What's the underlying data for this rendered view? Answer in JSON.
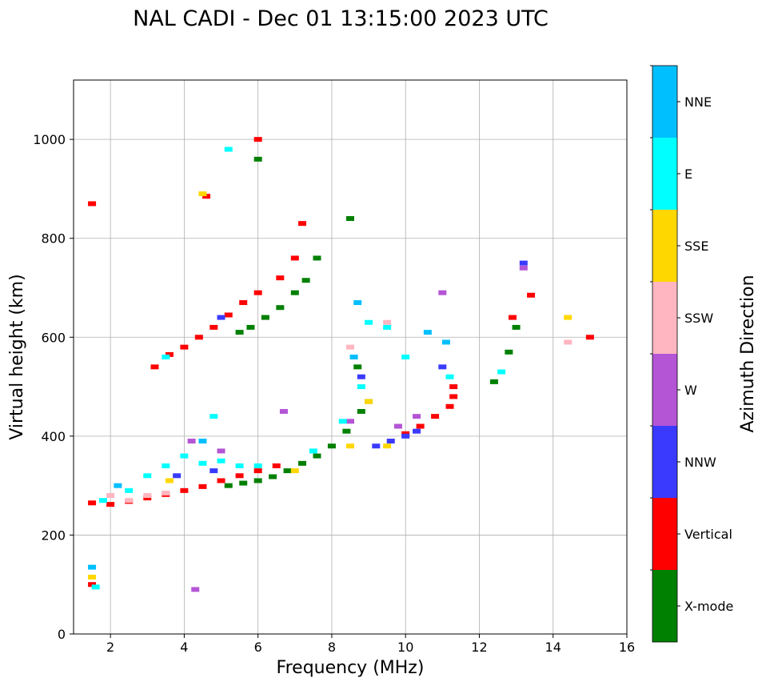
{
  "chart_data": {
    "type": "scatter",
    "title": "NAL CADI - Dec 01 13:15:00 2023 UTC",
    "xlabel": "Frequency (MHz)",
    "ylabel": "Virtual height (km)",
    "xlim": [
      1,
      16
    ],
    "ylim": [
      0,
      1120
    ],
    "xticks": [
      2,
      4,
      6,
      8,
      10,
      12,
      14,
      16
    ],
    "yticks": [
      0,
      200,
      400,
      600,
      800,
      1000
    ],
    "grid": true,
    "colorbar": {
      "label": "Azimuth Direction",
      "categories": [
        {
          "name": "X-mode",
          "color": "#008000"
        },
        {
          "name": "Vertical",
          "color": "#ff0000"
        },
        {
          "name": "NNW",
          "color": "#3a3aff"
        },
        {
          "name": "W",
          "color": "#b455d6"
        },
        {
          "name": "SSW",
          "color": "#ffb6c1"
        },
        {
          "name": "SSE",
          "color": "#ffd700"
        },
        {
          "name": "E",
          "color": "#00ffff"
        },
        {
          "name": "NNE",
          "color": "#00bfff"
        }
      ]
    },
    "series": [
      {
        "name": "X-mode",
        "points": [
          [
            5.2,
            300
          ],
          [
            5.6,
            305
          ],
          [
            6.0,
            310
          ],
          [
            6.4,
            318
          ],
          [
            6.8,
            330
          ],
          [
            7.2,
            345
          ],
          [
            7.6,
            360
          ],
          [
            8.0,
            380
          ],
          [
            8.4,
            410
          ],
          [
            8.8,
            450
          ],
          [
            5.5,
            610
          ],
          [
            5.8,
            620
          ],
          [
            6.2,
            640
          ],
          [
            6.6,
            660
          ],
          [
            7.0,
            690
          ],
          [
            7.3,
            715
          ],
          [
            7.6,
            760
          ],
          [
            8.5,
            840
          ],
          [
            12.4,
            510
          ],
          [
            12.8,
            570
          ],
          [
            13.0,
            620
          ],
          [
            6.0,
            960
          ],
          [
            9.0,
            470
          ],
          [
            8.7,
            540
          ]
        ]
      },
      {
        "name": "Vertical",
        "points": [
          [
            1.5,
            265
          ],
          [
            2.0,
            262
          ],
          [
            2.5,
            268
          ],
          [
            3.0,
            275
          ],
          [
            3.5,
            282
          ],
          [
            4.0,
            290
          ],
          [
            4.5,
            298
          ],
          [
            5.0,
            310
          ],
          [
            5.5,
            320
          ],
          [
            6.0,
            330
          ],
          [
            6.5,
            340
          ],
          [
            10.0,
            405
          ],
          [
            10.4,
            420
          ],
          [
            10.8,
            440
          ],
          [
            11.2,
            460
          ],
          [
            11.3,
            480
          ],
          [
            11.3,
            500
          ],
          [
            3.2,
            540
          ],
          [
            3.6,
            565
          ],
          [
            4.0,
            580
          ],
          [
            4.4,
            600
          ],
          [
            4.8,
            620
          ],
          [
            5.2,
            645
          ],
          [
            5.6,
            670
          ],
          [
            6.0,
            690
          ],
          [
            6.6,
            720
          ],
          [
            7.0,
            760
          ],
          [
            7.2,
            830
          ],
          [
            4.6,
            885
          ],
          [
            6.0,
            1000
          ],
          [
            1.5,
            870
          ],
          [
            13.4,
            685
          ],
          [
            15.0,
            600
          ],
          [
            12.9,
            640
          ],
          [
            1.5,
            100
          ]
        ]
      },
      {
        "name": "NNW",
        "points": [
          [
            9.2,
            380
          ],
          [
            9.6,
            390
          ],
          [
            10.0,
            400
          ],
          [
            10.3,
            410
          ],
          [
            13.2,
            750
          ],
          [
            5.0,
            640
          ],
          [
            4.8,
            330
          ],
          [
            8.8,
            520
          ],
          [
            11.0,
            540
          ],
          [
            3.8,
            320
          ]
        ]
      },
      {
        "name": "W",
        "points": [
          [
            6.7,
            450
          ],
          [
            9.8,
            420
          ],
          [
            10.3,
            440
          ],
          [
            4.2,
            390
          ],
          [
            11.0,
            690
          ],
          [
            8.5,
            430
          ],
          [
            13.2,
            740
          ],
          [
            4.3,
            90
          ],
          [
            5.0,
            370
          ]
        ]
      },
      {
        "name": "SSW",
        "points": [
          [
            2.5,
            270
          ],
          [
            3.0,
            280
          ],
          [
            3.5,
            285
          ],
          [
            8.5,
            580
          ],
          [
            14.4,
            590
          ],
          [
            9.5,
            630
          ],
          [
            2.0,
            280
          ]
        ]
      },
      {
        "name": "SSE",
        "points": [
          [
            8.5,
            380
          ],
          [
            9.0,
            470
          ],
          [
            9.5,
            380
          ],
          [
            3.6,
            310
          ],
          [
            7.0,
            330
          ],
          [
            14.4,
            640
          ],
          [
            4.5,
            890
          ],
          [
            1.5,
            115
          ]
        ]
      },
      {
        "name": "E",
        "points": [
          [
            1.8,
            270
          ],
          [
            2.5,
            290
          ],
          [
            3.0,
            320
          ],
          [
            3.5,
            340
          ],
          [
            4.0,
            360
          ],
          [
            4.5,
            345
          ],
          [
            5.0,
            350
          ],
          [
            5.5,
            340
          ],
          [
            6.0,
            340
          ],
          [
            7.5,
            370
          ],
          [
            8.3,
            430
          ],
          [
            8.8,
            500
          ],
          [
            9.0,
            630
          ],
          [
            9.5,
            620
          ],
          [
            10.0,
            560
          ],
          [
            11.2,
            520
          ],
          [
            12.6,
            530
          ],
          [
            3.5,
            560
          ],
          [
            1.6,
            95
          ],
          [
            5.2,
            980
          ],
          [
            4.8,
            440
          ]
        ]
      },
      {
        "name": "NNE",
        "points": [
          [
            8.7,
            670
          ],
          [
            10.6,
            610
          ],
          [
            11.1,
            590
          ],
          [
            2.2,
            300
          ],
          [
            1.5,
            135
          ],
          [
            4.5,
            390
          ],
          [
            8.6,
            560
          ]
        ]
      }
    ]
  }
}
